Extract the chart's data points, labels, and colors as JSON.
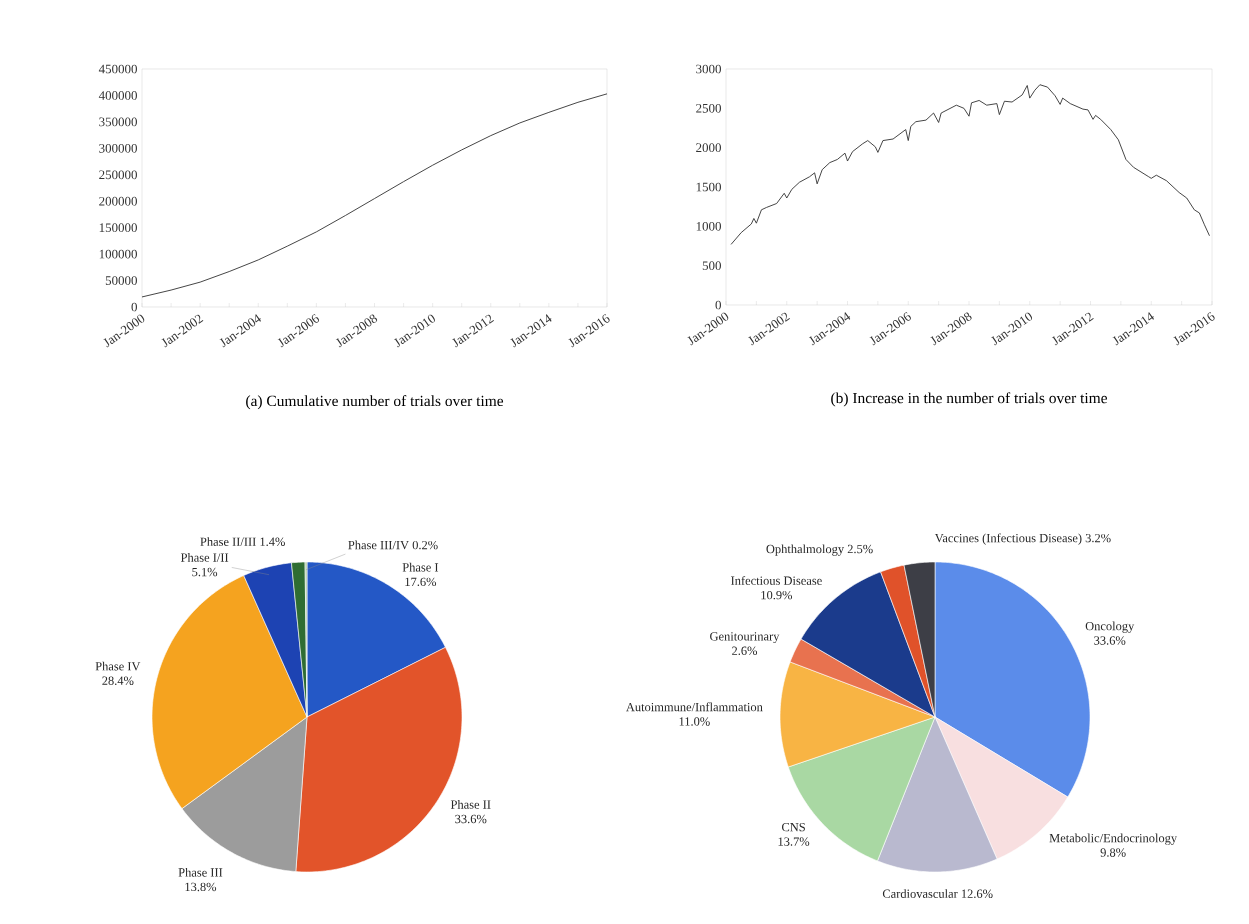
{
  "chart_data": [
    {
      "type": "line",
      "title": "(a) Cumulative number of trials over time",
      "color": "#303030",
      "x": [
        "2000-01",
        "2001-01",
        "2002-01",
        "2003-01",
        "2004-01",
        "2005-01",
        "2006-01",
        "2007-01",
        "2008-01",
        "2009-01",
        "2010-01",
        "2011-01",
        "2012-01",
        "2013-01",
        "2014-01",
        "2015-01",
        "2016-01"
      ],
      "values": [
        19000,
        32000,
        47000,
        67000,
        89000,
        115000,
        142000,
        173000,
        205000,
        237000,
        268000,
        297000,
        324000,
        348000,
        368000,
        387000,
        403000
      ],
      "xlim": [
        "2000-01",
        "2016-01"
      ],
      "xticks": [
        {
          "value": "2000-01",
          "label": "Jan-2000"
        },
        {
          "value": "2001-01",
          "label": null
        },
        {
          "value": "2002-01",
          "label": "Jan-2002"
        },
        {
          "value": "2003-01",
          "label": null
        },
        {
          "value": "2004-01",
          "label": "Jan-2004"
        },
        {
          "value": "2005-01",
          "label": null
        },
        {
          "value": "2006-01",
          "label": "Jan-2006"
        },
        {
          "value": "2007-01",
          "label": null
        },
        {
          "value": "2008-01",
          "label": "Jan-2008"
        },
        {
          "value": "2009-01",
          "label": null
        },
        {
          "value": "2010-01",
          "label": "Jan-2010"
        },
        {
          "value": "2011-01",
          "label": null
        },
        {
          "value": "2012-01",
          "label": "Jan-2012"
        },
        {
          "value": "2013-01",
          "label": null
        },
        {
          "value": "2014-01",
          "label": "Jan-2014"
        },
        {
          "value": "2015-01",
          "label": null
        },
        {
          "value": "2016-01",
          "label": "Jan-2016"
        }
      ],
      "ylim": [
        0,
        450000
      ],
      "yticks": [
        0,
        50000,
        100000,
        150000,
        200000,
        250000,
        300000,
        350000,
        400000,
        450000
      ]
    },
    {
      "type": "line",
      "title": "(b) Increase in the number of trials over time",
      "color": "#303030",
      "x": [
        "2000-03",
        "2000-07",
        "2000-11",
        "2000-12",
        "2001-01",
        "2001-03",
        "2001-05",
        "2001-09",
        "2001-12",
        "2002-01",
        "2002-03",
        "2002-06",
        "2002-10",
        "2002-12",
        "2003-01",
        "2003-03",
        "2003-06",
        "2003-09",
        "2003-12",
        "2004-01",
        "2004-03",
        "2004-07",
        "2004-09",
        "2004-12",
        "2005-01",
        "2005-03",
        "2005-07",
        "2005-12",
        "2006-01",
        "2006-02",
        "2006-04",
        "2006-08",
        "2006-11",
        "2007-01",
        "2007-02",
        "2007-08",
        "2007-11",
        "2008-01",
        "2008-02",
        "2008-05",
        "2008-08",
        "2008-12",
        "2009-01",
        "2009-03",
        "2009-06",
        "2009-10",
        "2009-12",
        "2010-01",
        "2010-03",
        "2010-05",
        "2010-08",
        "2010-11",
        "2011-01",
        "2011-02",
        "2011-05",
        "2011-10",
        "2011-12",
        "2012-02",
        "2012-03",
        "2012-05",
        "2012-09",
        "2012-12",
        "2013-03",
        "2013-06",
        "2013-12",
        "2014-01",
        "2014-03",
        "2014-07",
        "2014-12",
        "2015-03",
        "2015-06",
        "2015-08",
        "2015-10",
        "2015-12"
      ],
      "values": [
        770,
        920,
        1030,
        1100,
        1040,
        1210,
        1240,
        1290,
        1420,
        1360,
        1470,
        1560,
        1630,
        1680,
        1540,
        1720,
        1810,
        1850,
        1930,
        1830,
        1950,
        2050,
        2090,
        2010,
        1940,
        2090,
        2110,
        2230,
        2090,
        2270,
        2330,
        2350,
        2440,
        2320,
        2440,
        2540,
        2500,
        2400,
        2570,
        2600,
        2540,
        2560,
        2420,
        2590,
        2580,
        2670,
        2790,
        2630,
        2730,
        2800,
        2770,
        2660,
        2550,
        2630,
        2560,
        2490,
        2480,
        2360,
        2410,
        2360,
        2230,
        2100,
        1850,
        1750,
        1630,
        1610,
        1650,
        1580,
        1430,
        1360,
        1210,
        1170,
        1020,
        880
      ],
      "xlim": [
        "2000-01",
        "2016-01"
      ],
      "xticks": [
        {
          "value": "2000-01",
          "label": "Jan-2000"
        },
        {
          "value": "2001-01",
          "label": null
        },
        {
          "value": "2002-01",
          "label": "Jan-2002"
        },
        {
          "value": "2003-01",
          "label": null
        },
        {
          "value": "2004-01",
          "label": "Jan-2004"
        },
        {
          "value": "2005-01",
          "label": null
        },
        {
          "value": "2006-01",
          "label": "Jan-2006"
        },
        {
          "value": "2007-01",
          "label": null
        },
        {
          "value": "2008-01",
          "label": "Jan-2008"
        },
        {
          "value": "2009-01",
          "label": null
        },
        {
          "value": "2010-01",
          "label": "Jan-2010"
        },
        {
          "value": "2011-01",
          "label": null
        },
        {
          "value": "2012-01",
          "label": "Jan-2012"
        },
        {
          "value": "2013-01",
          "label": null
        },
        {
          "value": "2014-01",
          "label": "Jan-2014"
        },
        {
          "value": "2015-01",
          "label": null
        },
        {
          "value": "2016-01",
          "label": "Jan-2016"
        }
      ],
      "ylim": [
        0,
        3000
      ],
      "yticks": [
        0,
        500,
        1000,
        1500,
        2000,
        2500,
        3000
      ]
    },
    {
      "type": "pie",
      "categories": [
        "Phase I",
        "Phase II",
        "Phase III",
        "Phase IV",
        "Phase I/II",
        "Phase II/III",
        "Phase III/IV"
      ],
      "values": [
        17.6,
        33.6,
        13.8,
        28.4,
        5.1,
        1.4,
        0.2
      ],
      "value_labels": [
        "17.6%",
        "33.6%",
        "13.8%",
        "28.4%",
        "5.1%",
        "1.4%",
        "0.2%"
      ],
      "colors": [
        "#2458c6",
        "#e2542a",
        "#9c9c9c",
        "#f5a31f",
        "#1d43b3",
        "#2f6d33",
        "#a8c8a0"
      ]
    },
    {
      "type": "pie",
      "categories": [
        "Oncology",
        "Metabolic/Endocrinology",
        "Cardiovascular",
        "CNS",
        "Autoimmune/Inflammation",
        "Genitourinary",
        "Infectious Disease",
        "Ophthalmology",
        "Vaccines (Infectious Disease)"
      ],
      "values": [
        33.6,
        9.8,
        12.6,
        13.7,
        11.0,
        2.6,
        10.9,
        2.5,
        3.2
      ],
      "value_labels": [
        "33.6%",
        "9.8%",
        "12.6%",
        "13.7%",
        "11.0%",
        "2.6%",
        "10.9%",
        "2.5%",
        "3.2%"
      ],
      "colors": [
        "#5b8cea",
        "#f8dfe0",
        "#b9b9cf",
        "#a9d8a3",
        "#f8b444",
        "#e8724f",
        "#1b3b8c",
        "#e0522a",
        "#3d3e46"
      ]
    }
  ]
}
